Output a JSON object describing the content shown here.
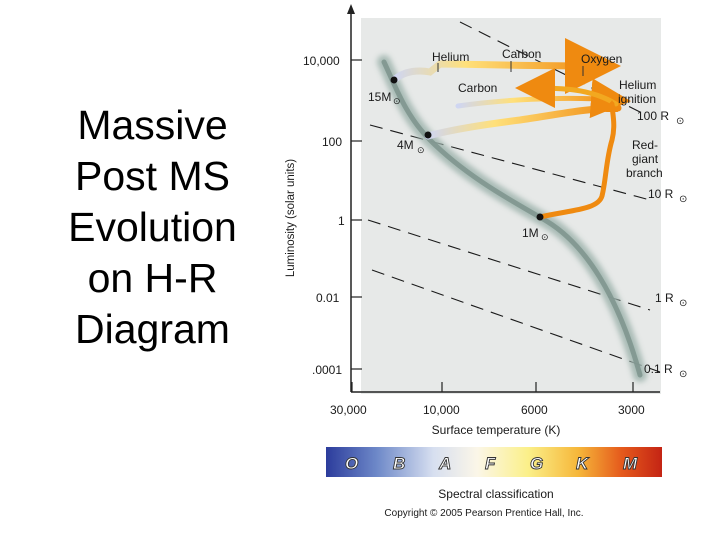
{
  "title_lines": [
    "Massive",
    "Post MS",
    "Evolution",
    "on H-R",
    "Diagram"
  ],
  "diagram": {
    "y_axis_label": "Luminosity (solar units)",
    "x_axis_label": "Surface temperature (K)",
    "y_ticks": [
      "10,000",
      "100",
      "1",
      "0.01",
      ".0001"
    ],
    "x_ticks": [
      "30,000",
      "10,000",
      "6000",
      "3000"
    ],
    "radius_lines": [
      {
        "label": "100 R",
        "symbol": "⊙"
      },
      {
        "label": "10 R",
        "symbol": "⊙"
      },
      {
        "label": "1 R",
        "symbol": "⊙"
      },
      {
        "label": "0.1 R",
        "symbol": "⊙"
      }
    ],
    "stars": [
      {
        "label": "15M",
        "symbol": "⊙"
      },
      {
        "label": "4M",
        "symbol": "⊙"
      },
      {
        "label": "1M",
        "symbol": "⊙"
      }
    ],
    "annotations": {
      "helium": "Helium",
      "carbon_top": "Carbon",
      "oxygen": "Oxygen",
      "carbon_mid": "Carbon",
      "helium_ignition_1": "Helium",
      "helium_ignition_2": "ignition",
      "red_giant_1": "Red-",
      "red_giant_2": "giant",
      "red_giant_3": "branch"
    },
    "spectral_label": "Spectral classification",
    "spectral_classes": [
      "O",
      "B",
      "A",
      "F",
      "G",
      "K",
      "M"
    ],
    "copyright": "Copyright © 2005 Pearson Prentice Hall, Inc.",
    "colors": {
      "panel": "#e7e9e8",
      "main_sequence": "#8aa29b",
      "track_massive": "#f0a000",
      "track_sun": "#e8881a"
    }
  }
}
